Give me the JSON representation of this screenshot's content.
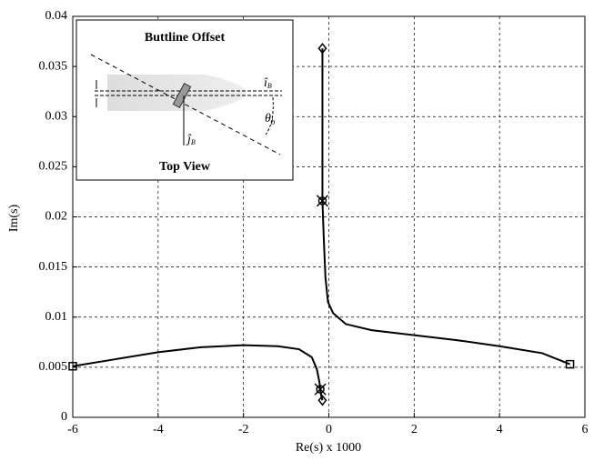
{
  "chart_data": {
    "type": "line",
    "xlabel": "Re(s) x 1000",
    "ylabel": "Im(s)",
    "xlim": [
      -6,
      6
    ],
    "ylim": [
      0,
      0.04
    ],
    "xticks": [
      -6,
      -4,
      -2,
      0,
      2,
      4,
      6
    ],
    "yticks": [
      0,
      0.005,
      0.01,
      0.015,
      0.02,
      0.025,
      0.03,
      0.035,
      0.04
    ],
    "grid": true,
    "color": "#000000",
    "series": [
      {
        "x": [
          -6,
          -5,
          -4,
          -3,
          -2,
          -1.2,
          -0.7,
          -0.4,
          -0.28,
          -0.22,
          -0.2,
          -0.18,
          -0.15
        ],
        "values": [
          0.0051,
          0.0058,
          0.0065,
          0.007,
          0.0072,
          0.0071,
          0.0068,
          0.006,
          0.0048,
          0.0035,
          0.0028,
          0.0022,
          0.0017
        ]
      },
      {
        "x": [
          -0.15,
          -0.15,
          -0.12,
          -0.08,
          -0.02,
          0.1,
          0.4,
          1,
          2,
          3,
          4,
          5,
          5.65
        ],
        "values": [
          0.0368,
          0.0216,
          0.018,
          0.014,
          0.0115,
          0.0104,
          0.0093,
          0.0087,
          0.0082,
          0.0077,
          0.0071,
          0.0064,
          0.0053
        ]
      }
    ],
    "markers": [
      {
        "marker": "square",
        "x": [
          -6,
          5.65
        ],
        "values": [
          0.0051,
          0.0053
        ]
      },
      {
        "marker": "diamond",
        "x": [
          -0.15,
          -0.15
        ],
        "values": [
          0.0368,
          0.0017
        ]
      },
      {
        "marker": "circled-x",
        "x": [
          -0.15,
          -0.2
        ],
        "values": [
          0.0216,
          0.0028
        ]
      }
    ],
    "inset": {
      "title": "Buttline Offset",
      "caption": "Top View",
      "labels": [
        {
          "text": "î",
          "sub": "B"
        },
        {
          "text": "ĵ",
          "sub": "B"
        },
        {
          "text": "θ",
          "sub": "b"
        }
      ]
    }
  }
}
